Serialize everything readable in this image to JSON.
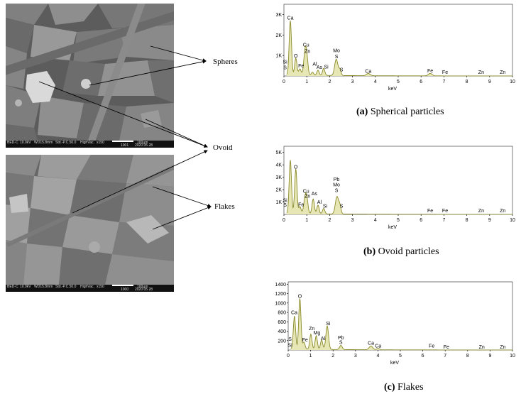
{
  "sem_images": [
    {
      "info": {
        "mode": "BED-C",
        "voltage": "10.0kV",
        "wd": "WD15.8mm",
        "std": "Std.-P.C.50.0",
        "vac": "HighVac.",
        "mag": "x150",
        "scale": "100µm",
        "code": "1001",
        "date": "2020 05 28"
      }
    },
    {
      "info": {
        "mode": "BED-C",
        "voltage": "10.0kV",
        "wd": "WD15.8mm",
        "std": "Std.-P.C.50.0",
        "vac": "HighVac.",
        "mag": "x150",
        "scale": "100µm",
        "code": "1000",
        "date": "2020 05 28"
      }
    }
  ],
  "labels": {
    "spheres": "Spheres",
    "ovoid": "Ovoid",
    "flakes": "Flakes"
  },
  "captions": [
    {
      "letter": "(a)",
      "text": " Spherical particles"
    },
    {
      "letter": "(b)",
      "text": " Ovoid particles"
    },
    {
      "letter": "(c)",
      "text": " Flakes"
    }
  ],
  "colors": {
    "spectrum": "#8a8a2a",
    "axis": "#000000"
  },
  "chart_data": [
    {
      "type": "line",
      "xlabel": "keV",
      "xlim": [
        0,
        10
      ],
      "ylim": [
        0,
        3500
      ],
      "x_ticks": [
        "0",
        "1",
        "2",
        "3",
        "4",
        "5",
        "6",
        "7",
        "8",
        "9",
        "10"
      ],
      "y_ticks": [
        {
          "v": 1000,
          "t": "1K"
        },
        {
          "v": 2000,
          "t": "2K"
        },
        {
          "v": 3000,
          "t": "3K"
        }
      ],
      "peaks": [
        {
          "x": 0.28,
          "y": 2650,
          "w": 0.05
        },
        {
          "x": 0.52,
          "y": 820,
          "w": 0.05
        },
        {
          "x": 0.7,
          "y": 300,
          "w": 0.05
        },
        {
          "x": 0.93,
          "y": 1200,
          "w": 0.06
        },
        {
          "x": 1.01,
          "y": 600,
          "w": 0.05
        },
        {
          "x": 1.25,
          "y": 150,
          "w": 0.05
        },
        {
          "x": 1.49,
          "y": 250,
          "w": 0.05
        },
        {
          "x": 1.74,
          "y": 350,
          "w": 0.05
        },
        {
          "x": 2.29,
          "y": 800,
          "w": 0.07
        },
        {
          "x": 2.45,
          "y": 280,
          "w": 0.05
        },
        {
          "x": 3.69,
          "y": 110,
          "w": 0.08
        },
        {
          "x": 6.4,
          "y": 120,
          "w": 0.08
        }
      ],
      "annotations": [
        {
          "x": 0.28,
          "y": 2750,
          "text": "Ca"
        },
        {
          "x": 0.05,
          "y": 600,
          "text": "Si"
        },
        {
          "x": 0.05,
          "y": 330,
          "text": "S"
        },
        {
          "x": 0.52,
          "y": 900,
          "text": "O"
        },
        {
          "x": 0.75,
          "y": 420,
          "text": "Fe"
        },
        {
          "x": 0.97,
          "y": 1440,
          "text": "Cu"
        },
        {
          "x": 1.03,
          "y": 1130,
          "text": "Zn"
        },
        {
          "x": 1.35,
          "y": 500,
          "text": "Al"
        },
        {
          "x": 1.55,
          "y": 340,
          "text": "As"
        },
        {
          "x": 1.85,
          "y": 370,
          "text": "Si"
        },
        {
          "x": 2.3,
          "y": 1160,
          "text": "Mo"
        },
        {
          "x": 2.3,
          "y": 860,
          "text": "S"
        },
        {
          "x": 2.52,
          "y": 230,
          "text": "S"
        },
        {
          "x": 3.69,
          "y": 150,
          "text": "Ca"
        },
        {
          "x": 6.4,
          "y": 170,
          "text": "Fe"
        },
        {
          "x": 7.05,
          "y": 110,
          "text": "Fe"
        },
        {
          "x": 8.63,
          "y": 110,
          "text": "Zn"
        },
        {
          "x": 9.57,
          "y": 110,
          "text": "Zn"
        }
      ]
    },
    {
      "type": "line",
      "xlabel": "keV",
      "xlim": [
        0,
        10
      ],
      "ylim": [
        0,
        5500
      ],
      "x_ticks": [
        "0",
        "1",
        "2",
        "3",
        "4",
        "5",
        "6",
        "7",
        "8",
        "9",
        "10"
      ],
      "y_ticks": [
        {
          "v": 1000,
          "t": "1K"
        },
        {
          "v": 2000,
          "t": "2K"
        },
        {
          "v": 3000,
          "t": "3K"
        },
        {
          "v": 4000,
          "t": "4K"
        },
        {
          "v": 5000,
          "t": "5K"
        }
      ],
      "peaks": [
        {
          "x": 0.28,
          "y": 4300,
          "w": 0.05
        },
        {
          "x": 0.52,
          "y": 3600,
          "w": 0.05
        },
        {
          "x": 0.7,
          "y": 550,
          "w": 0.05
        },
        {
          "x": 0.93,
          "y": 1300,
          "w": 0.06
        },
        {
          "x": 1.01,
          "y": 900,
          "w": 0.05
        },
        {
          "x": 1.28,
          "y": 1200,
          "w": 0.05
        },
        {
          "x": 1.49,
          "y": 700,
          "w": 0.05
        },
        {
          "x": 1.74,
          "y": 450,
          "w": 0.05
        },
        {
          "x": 2.32,
          "y": 1400,
          "w": 0.07
        },
        {
          "x": 2.45,
          "y": 600,
          "w": 0.05
        }
      ],
      "annotations": [
        {
          "x": 0.52,
          "y": 3700,
          "text": "O"
        },
        {
          "x": 0.05,
          "y": 1000,
          "text": "Si"
        },
        {
          "x": 0.05,
          "y": 630,
          "text": "S"
        },
        {
          "x": 0.75,
          "y": 650,
          "text": "Fe"
        },
        {
          "x": 0.97,
          "y": 1750,
          "text": "Cu"
        },
        {
          "x": 1.03,
          "y": 1350,
          "text": "Zn"
        },
        {
          "x": 1.33,
          "y": 1550,
          "text": "As"
        },
        {
          "x": 1.55,
          "y": 850,
          "text": "Al"
        },
        {
          "x": 1.8,
          "y": 550,
          "text": "Si"
        },
        {
          "x": 2.3,
          "y": 2700,
          "text": "Pb"
        },
        {
          "x": 2.3,
          "y": 2250,
          "text": "Mo"
        },
        {
          "x": 2.3,
          "y": 1800,
          "text": "S"
        },
        {
          "x": 2.52,
          "y": 540,
          "text": "S"
        },
        {
          "x": 6.4,
          "y": 180,
          "text": "Fe"
        },
        {
          "x": 7.05,
          "y": 180,
          "text": "Fe"
        },
        {
          "x": 8.63,
          "y": 180,
          "text": "Zn"
        },
        {
          "x": 9.57,
          "y": 180,
          "text": "Zn"
        }
      ]
    },
    {
      "type": "line",
      "xlabel": "keV",
      "xlim": [
        0,
        10
      ],
      "ylim": [
        0,
        1450
      ],
      "x_ticks": [
        "0",
        "1",
        "2",
        "3",
        "4",
        "5",
        "6",
        "7",
        "8",
        "9",
        "10"
      ],
      "y_ticks": [
        {
          "v": 200,
          "t": "200"
        },
        {
          "v": 400,
          "t": "400"
        },
        {
          "v": 600,
          "t": "600"
        },
        {
          "v": 800,
          "t": "800"
        },
        {
          "v": 1000,
          "t": "1000"
        },
        {
          "v": 1200,
          "t": "1200"
        },
        {
          "v": 1400,
          "t": "1400"
        }
      ],
      "peaks": [
        {
          "x": 0.28,
          "y": 700,
          "w": 0.05
        },
        {
          "x": 0.52,
          "y": 1080,
          "w": 0.05
        },
        {
          "x": 0.7,
          "y": 150,
          "w": 0.05
        },
        {
          "x": 1.01,
          "y": 320,
          "w": 0.05
        },
        {
          "x": 1.25,
          "y": 290,
          "w": 0.05
        },
        {
          "x": 1.49,
          "y": 200,
          "w": 0.05
        },
        {
          "x": 1.74,
          "y": 500,
          "w": 0.06
        },
        {
          "x": 2.35,
          "y": 90,
          "w": 0.06
        },
        {
          "x": 3.69,
          "y": 80,
          "w": 0.08
        },
        {
          "x": 4.01,
          "y": 30,
          "w": 0.06
        }
      ],
      "annotations": [
        {
          "x": 0.27,
          "y": 760,
          "text": "Ca"
        },
        {
          "x": 0.52,
          "y": 1110,
          "text": "O"
        },
        {
          "x": 0.08,
          "y": 200,
          "text": "S"
        },
        {
          "x": 0.08,
          "y": 70,
          "text": "Si"
        },
        {
          "x": 0.75,
          "y": 180,
          "text": "Fe"
        },
        {
          "x": 1.05,
          "y": 420,
          "text": "Zn"
        },
        {
          "x": 1.28,
          "y": 330,
          "text": "Mg"
        },
        {
          "x": 1.55,
          "y": 210,
          "text": "Al"
        },
        {
          "x": 1.78,
          "y": 530,
          "text": "Si"
        },
        {
          "x": 2.35,
          "y": 230,
          "text": "Pb"
        },
        {
          "x": 2.35,
          "y": 130,
          "text": "S"
        },
        {
          "x": 3.69,
          "y": 110,
          "text": "Ca"
        },
        {
          "x": 4.01,
          "y": 50,
          "text": "Ca"
        },
        {
          "x": 6.4,
          "y": 50,
          "text": "Fe"
        },
        {
          "x": 7.05,
          "y": 30,
          "text": "Fe"
        },
        {
          "x": 8.63,
          "y": 30,
          "text": "Zn"
        },
        {
          "x": 9.57,
          "y": 30,
          "text": "Zn"
        }
      ]
    }
  ]
}
